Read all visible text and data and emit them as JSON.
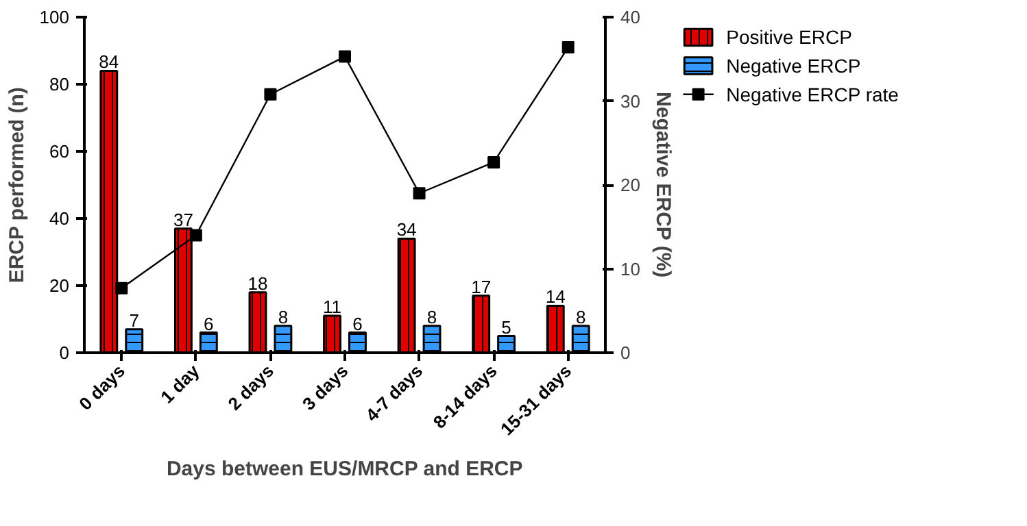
{
  "chart_data": {
    "type": "bar",
    "xlabel": "Days between EUS/MRCP and ERCP",
    "ylabel": "ERCP performed (n)",
    "y2label": "Negative ERCP (%)",
    "categories": [
      "0 days",
      "1 day",
      "2 days",
      "3 days",
      "4-7 days",
      "8-14 days",
      "15-31 days"
    ],
    "series": [
      {
        "name": "Positive ERCP",
        "color": "#e00000",
        "values": [
          84,
          37,
          18,
          11,
          34,
          17,
          14
        ],
        "value_labels": [
          "84",
          "37",
          "18",
          "11",
          "34",
          "17",
          "14"
        ]
      },
      {
        "name": "Negative ERCP",
        "color": "#3399ff",
        "values": [
          7,
          6,
          8,
          6,
          8,
          5,
          8
        ],
        "value_labels": [
          "7",
          "6",
          "8",
          "6",
          "8",
          "5",
          "8"
        ]
      },
      {
        "name": "Negative ERCP rate",
        "type": "line",
        "axis": "y2",
        "color": "#000000",
        "marker": "square",
        "values": [
          7.7,
          14.0,
          30.8,
          35.3,
          19.0,
          22.7,
          36.4
        ]
      }
    ],
    "ylim": [
      0,
      100
    ],
    "yticks": [
      0,
      20,
      40,
      60,
      80,
      100
    ],
    "y2lim": [
      0,
      40
    ],
    "y2ticks": [
      0,
      10,
      20,
      30,
      40
    ],
    "grid": false,
    "legend": "right"
  }
}
